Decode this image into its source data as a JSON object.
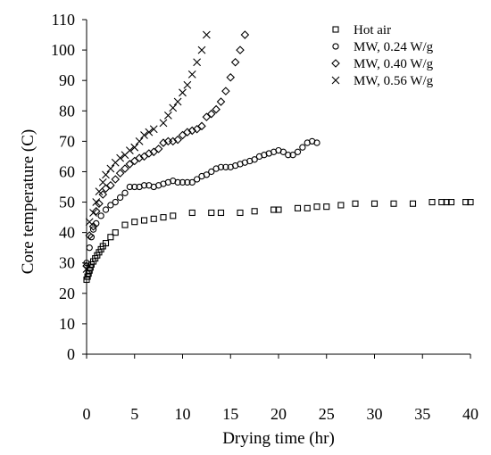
{
  "chart_data": {
    "type": "scatter",
    "title": "",
    "xlabel": "Drying time (hr)",
    "ylabel": "Core temperature (C)",
    "xlim": [
      0,
      40
    ],
    "ylim": [
      0,
      110
    ],
    "xticks": [
      0,
      5,
      10,
      15,
      20,
      25,
      30,
      35,
      40
    ],
    "yticks": [
      0,
      10,
      20,
      30,
      40,
      50,
      60,
      70,
      80,
      90,
      100,
      110
    ],
    "grid": false,
    "legend_position": "top-right",
    "series": [
      {
        "name": "Hot air",
        "marker": "square",
        "points": [
          [
            0.0,
            24.5
          ],
          [
            0.1,
            25.5
          ],
          [
            0.2,
            26.5
          ],
          [
            0.3,
            27.5
          ],
          [
            0.4,
            28.5
          ],
          [
            0.5,
            29.5
          ],
          [
            0.7,
            30.5
          ],
          [
            0.9,
            31.5
          ],
          [
            1.1,
            32.5
          ],
          [
            1.3,
            33.5
          ],
          [
            1.5,
            34.5
          ],
          [
            1.7,
            35.5
          ],
          [
            2.0,
            36.5
          ],
          [
            2.5,
            38.5
          ],
          [
            3.0,
            40.0
          ],
          [
            4.0,
            42.5
          ],
          [
            5.0,
            43.5
          ],
          [
            6.0,
            44.0
          ],
          [
            7.0,
            44.5
          ],
          [
            8.0,
            45.0
          ],
          [
            9.0,
            45.5
          ],
          [
            11.0,
            46.5
          ],
          [
            13.0,
            46.5
          ],
          [
            14.0,
            46.5
          ],
          [
            16.0,
            46.5
          ],
          [
            17.5,
            47.0
          ],
          [
            19.5,
            47.5
          ],
          [
            20.0,
            47.5
          ],
          [
            22.0,
            48.0
          ],
          [
            23.0,
            48.0
          ],
          [
            24.0,
            48.5
          ],
          [
            25.0,
            48.5
          ],
          [
            26.5,
            49.0
          ],
          [
            28.0,
            49.5
          ],
          [
            30.0,
            49.5
          ],
          [
            32.0,
            49.5
          ],
          [
            34.0,
            49.5
          ],
          [
            36.0,
            50.0
          ],
          [
            37.0,
            50.0
          ],
          [
            37.5,
            50.0
          ],
          [
            38.0,
            50.0
          ],
          [
            39.5,
            50.0
          ],
          [
            40.0,
            50.0
          ]
        ]
      },
      {
        "name": "MW, 0.24 W/g",
        "marker": "circle",
        "points": [
          [
            0.0,
            30.0
          ],
          [
            0.3,
            35.0
          ],
          [
            0.5,
            38.5
          ],
          [
            0.7,
            41.0
          ],
          [
            1.0,
            43.0
          ],
          [
            1.5,
            45.5
          ],
          [
            2.0,
            47.5
          ],
          [
            2.5,
            49.0
          ],
          [
            3.0,
            50.0
          ],
          [
            3.5,
            51.5
          ],
          [
            4.0,
            53.0
          ],
          [
            4.5,
            55.0
          ],
          [
            5.0,
            55.0
          ],
          [
            5.5,
            55.0
          ],
          [
            6.0,
            55.5
          ],
          [
            6.5,
            55.5
          ],
          [
            7.0,
            55.0
          ],
          [
            7.5,
            55.5
          ],
          [
            8.0,
            56.0
          ],
          [
            8.5,
            56.5
          ],
          [
            9.0,
            57.0
          ],
          [
            9.5,
            56.5
          ],
          [
            10.0,
            56.5
          ],
          [
            10.5,
            56.5
          ],
          [
            11.0,
            56.5
          ],
          [
            11.5,
            57.5
          ],
          [
            12.0,
            58.5
          ],
          [
            12.5,
            59.0
          ],
          [
            13.0,
            60.0
          ],
          [
            13.5,
            61.0
          ],
          [
            14.0,
            61.5
          ],
          [
            14.5,
            61.5
          ],
          [
            15.0,
            61.5
          ],
          [
            15.5,
            62.0
          ],
          [
            16.0,
            62.5
          ],
          [
            16.5,
            63.0
          ],
          [
            17.0,
            63.5
          ],
          [
            17.5,
            64.0
          ],
          [
            18.0,
            65.0
          ],
          [
            18.5,
            65.5
          ],
          [
            19.0,
            66.0
          ],
          [
            19.5,
            66.5
          ],
          [
            20.0,
            67.0
          ],
          [
            20.5,
            66.5
          ],
          [
            21.0,
            65.5
          ],
          [
            21.5,
            65.5
          ],
          [
            22.0,
            66.5
          ],
          [
            22.5,
            68.0
          ],
          [
            23.0,
            69.5
          ],
          [
            23.5,
            70.0
          ],
          [
            24.0,
            69.5
          ]
        ]
      },
      {
        "name": "MW, 0.40 W/g",
        "marker": "diamond",
        "points": [
          [
            0.0,
            29.0
          ],
          [
            0.3,
            39.0
          ],
          [
            0.7,
            42.0
          ],
          [
            1.0,
            47.0
          ],
          [
            1.3,
            49.5
          ],
          [
            1.7,
            52.5
          ],
          [
            2.0,
            54.5
          ],
          [
            2.5,
            55.5
          ],
          [
            3.0,
            57.5
          ],
          [
            3.5,
            59.5
          ],
          [
            4.0,
            61.0
          ],
          [
            4.5,
            62.5
          ],
          [
            5.0,
            63.5
          ],
          [
            5.5,
            64.5
          ],
          [
            6.0,
            65.0
          ],
          [
            6.5,
            66.0
          ],
          [
            7.0,
            66.5
          ],
          [
            7.5,
            67.5
          ],
          [
            8.0,
            69.5
          ],
          [
            8.5,
            70.0
          ],
          [
            9.0,
            70.0
          ],
          [
            9.5,
            70.5
          ],
          [
            10.0,
            72.0
          ],
          [
            10.5,
            73.0
          ],
          [
            11.0,
            73.5
          ],
          [
            11.5,
            74.0
          ],
          [
            12.0,
            75.0
          ],
          [
            12.5,
            78.0
          ],
          [
            13.0,
            79.0
          ],
          [
            13.5,
            80.5
          ],
          [
            14.0,
            83.0
          ],
          [
            14.5,
            86.5
          ],
          [
            15.0,
            91.0
          ],
          [
            15.5,
            96.0
          ],
          [
            16.0,
            100.0
          ],
          [
            16.5,
            105.0
          ]
        ]
      },
      {
        "name": "MW, 0.56 W/g",
        "marker": "cross",
        "points": [
          [
            0.0,
            28.0
          ],
          [
            0.3,
            43.5
          ],
          [
            0.7,
            46.5
          ],
          [
            1.0,
            50.0
          ],
          [
            1.3,
            53.5
          ],
          [
            1.7,
            56.5
          ],
          [
            2.0,
            59.0
          ],
          [
            2.5,
            61.0
          ],
          [
            3.0,
            63.0
          ],
          [
            3.5,
            64.5
          ],
          [
            4.0,
            65.5
          ],
          [
            4.5,
            67.0
          ],
          [
            5.0,
            68.0
          ],
          [
            5.5,
            70.0
          ],
          [
            6.0,
            72.0
          ],
          [
            6.5,
            73.0
          ],
          [
            7.0,
            74.0
          ],
          [
            8.0,
            76.0
          ],
          [
            8.5,
            78.5
          ],
          [
            9.0,
            81.0
          ],
          [
            9.5,
            83.0
          ],
          [
            10.0,
            86.0
          ],
          [
            10.5,
            88.5
          ],
          [
            11.0,
            92.0
          ],
          [
            11.5,
            96.0
          ],
          [
            12.0,
            100.0
          ],
          [
            12.5,
            105.0
          ]
        ]
      }
    ]
  }
}
